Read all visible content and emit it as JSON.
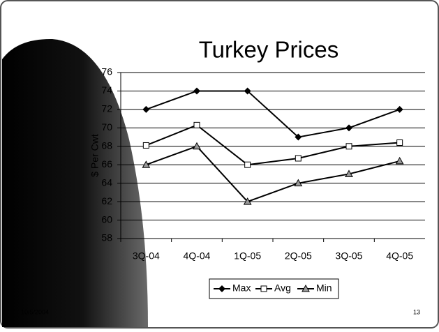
{
  "chart_data": {
    "type": "line",
    "title": "Turkey Prices",
    "y_label": "$ Per Cwt",
    "categories": [
      "3Q-04",
      "4Q-04",
      "1Q-05",
      "2Q-05",
      "3Q-05",
      "4Q-05"
    ],
    "series": [
      {
        "name": "Max",
        "color": "#000000",
        "marker": "diamond",
        "values": [
          72,
          74,
          74,
          69,
          70,
          72
        ]
      },
      {
        "name": "Avg",
        "color": "#000000",
        "marker": "square",
        "values": [
          68.1,
          70.3,
          66,
          66.7,
          68,
          68.4
        ]
      },
      {
        "name": "Min",
        "color": "#000000",
        "marker": "triangle",
        "values": [
          66,
          68,
          62,
          64,
          65,
          66.4
        ]
      }
    ],
    "ylim": [
      58,
      76
    ],
    "yticks": [
      58,
      60,
      62,
      64,
      66,
      68,
      70,
      72,
      74,
      76
    ],
    "grid": true,
    "legend": "bottom"
  },
  "footer": {
    "date": "10/5/2004",
    "page": "13"
  }
}
